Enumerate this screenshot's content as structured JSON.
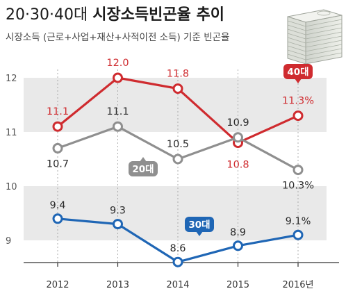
{
  "header": {
    "title_prefix": "20·30·40대 ",
    "title_main": "시장소득빈곤율 추이",
    "subtitle": "시장소득 (근로+사업+재산+사적이전 소득) 기준 빈곤율",
    "icon": "stacked-money-icon"
  },
  "colors": {
    "s40": "#cf2b2f",
    "s20": "#8f8f8f",
    "s30": "#1f66b5",
    "band": "#e9e9e9",
    "axis": "#333333"
  },
  "chart_data": {
    "type": "line",
    "x": [
      "2012",
      "2013",
      "2014",
      "2015",
      "2016"
    ],
    "x_tick_labels": [
      "2012",
      "2013",
      "2014",
      "2015",
      "2016년"
    ],
    "y_ticks": [
      9,
      10,
      11,
      12
    ],
    "ylim": [
      8.55,
      12.35
    ],
    "grid": false,
    "legend": "inline-tags",
    "series": [
      {
        "key": "s40",
        "name": "40대",
        "values": [
          11.1,
          12.0,
          11.8,
          10.8,
          11.3
        ],
        "labels": [
          "11.1",
          "12.0",
          "11.8",
          "10.8",
          "11.3%"
        ]
      },
      {
        "key": "s20",
        "name": "20대",
        "values": [
          10.7,
          11.1,
          10.5,
          10.9,
          10.3
        ],
        "labels": [
          "10.7",
          "11.1",
          "10.5",
          "10.9",
          "10.3%"
        ]
      },
      {
        "key": "s30",
        "name": "30대",
        "values": [
          9.4,
          9.3,
          8.6,
          8.9,
          9.1
        ],
        "labels": [
          "9.4",
          "9.3",
          "8.6",
          "8.9",
          "9.1%"
        ]
      }
    ]
  }
}
